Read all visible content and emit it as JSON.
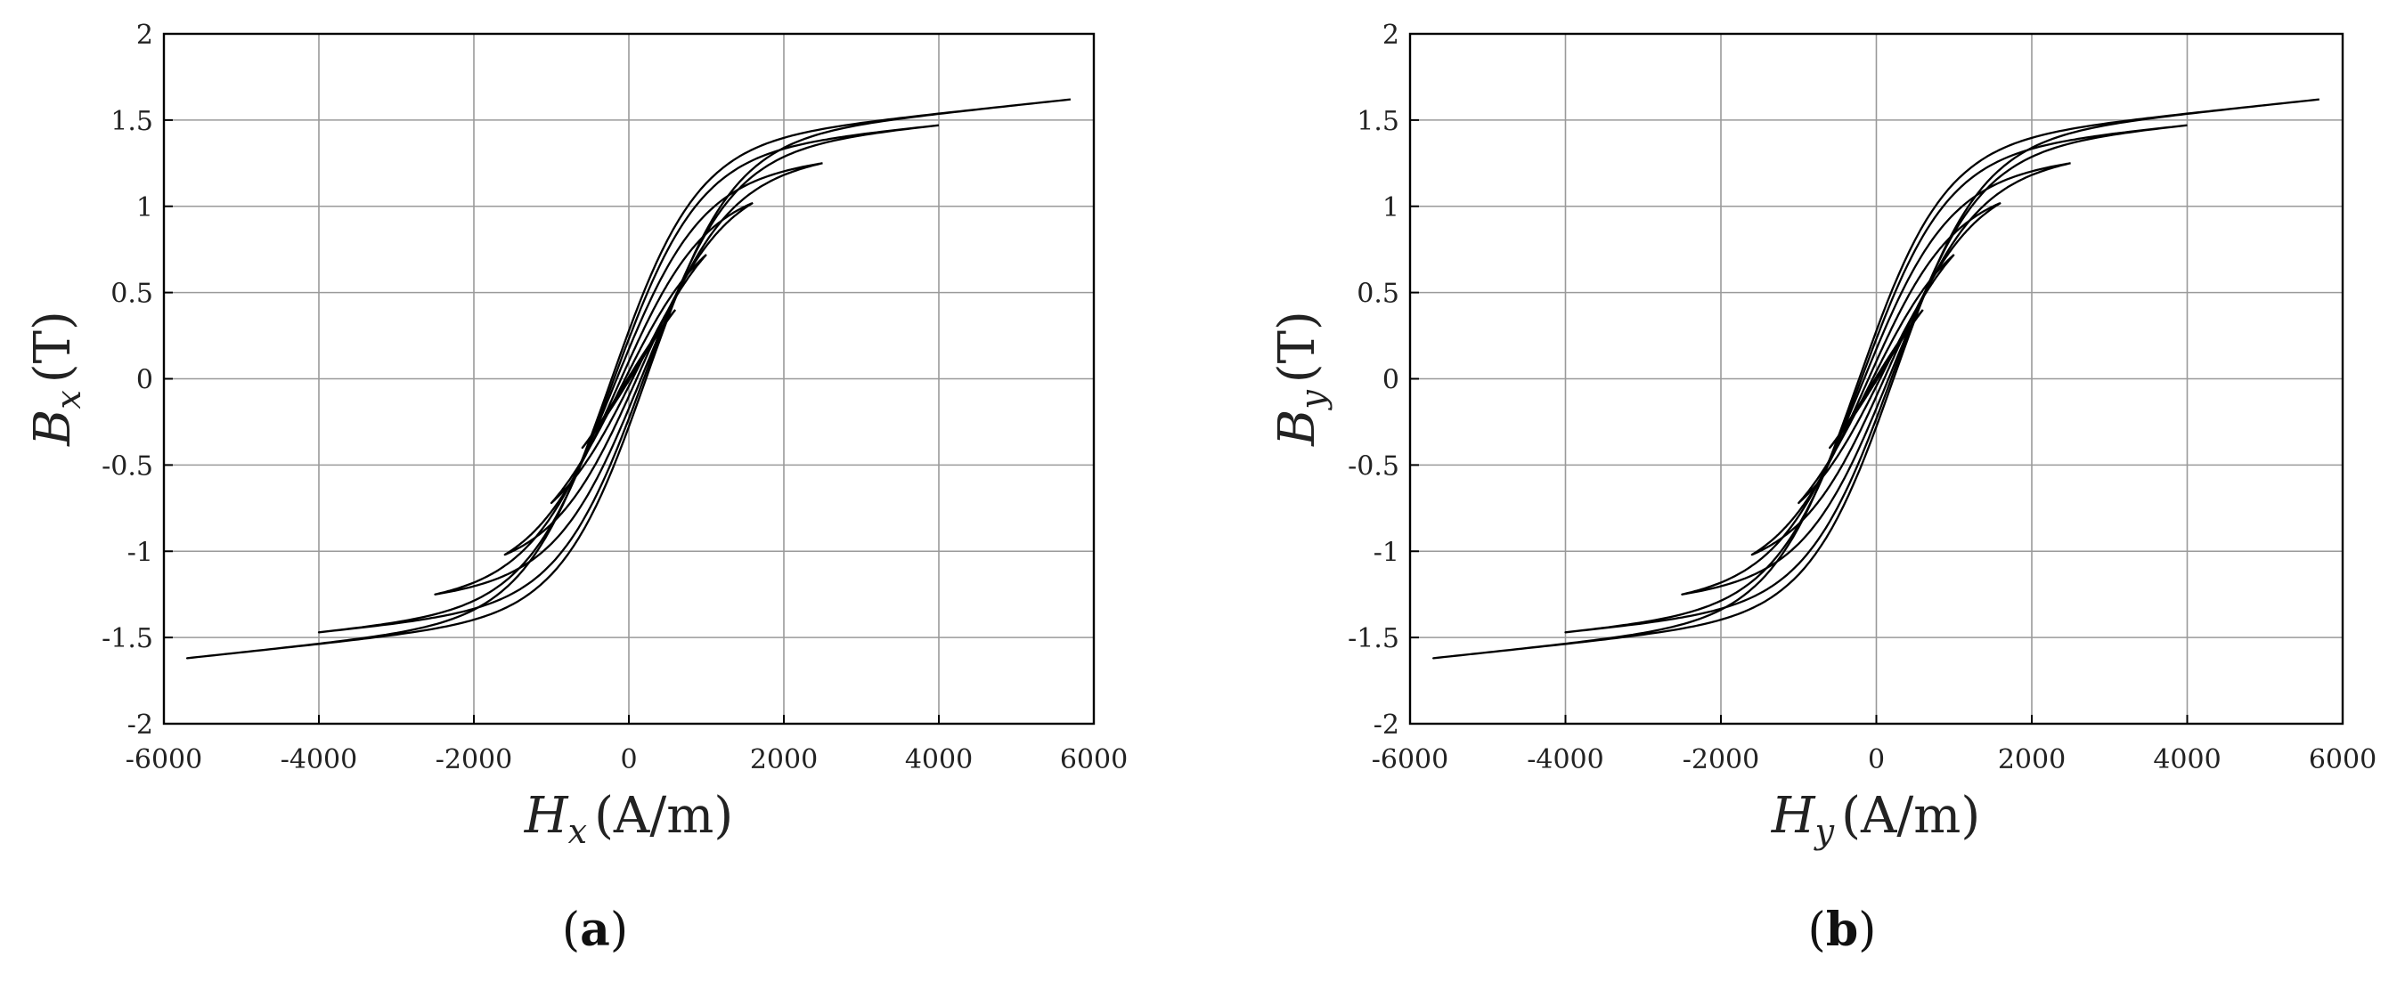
{
  "chart_data": [
    {
      "panel_label": "(a)",
      "panel_letter": "a",
      "type": "line",
      "xlabel": {
        "symbol": "H",
        "subscript": "x",
        "unit": "(A/m)"
      },
      "ylabel": {
        "symbol": "B",
        "subscript": "x",
        "unit": "(T)"
      },
      "xlim": [
        -6000,
        6000
      ],
      "ylim": [
        -2,
        2
      ],
      "xticks": [
        "-6000",
        "-4000",
        "-2000",
        "0",
        "2000",
        "4000",
        "6000"
      ],
      "yticks": [
        "2",
        "1.5",
        "1",
        "0.5",
        "0",
        "-0.5",
        "-1",
        "-1.5",
        "-2"
      ],
      "grid": true,
      "series": [
        {
          "peak_H": 5700,
          "peak_B": 1.62,
          "coercivity_H": 230
        },
        {
          "peak_H": 4000,
          "peak_B": 1.47,
          "coercivity_H": 200
        },
        {
          "peak_H": 2500,
          "peak_B": 1.25,
          "coercivity_H": 170
        },
        {
          "peak_H": 1600,
          "peak_B": 1.02,
          "coercivity_H": 130
        },
        {
          "peak_H": 1000,
          "peak_B": 0.72,
          "coercivity_H": 95
        },
        {
          "peak_H": 600,
          "peak_B": 0.4,
          "coercivity_H": 60
        }
      ]
    },
    {
      "panel_label": "(b)",
      "panel_letter": "b",
      "type": "line",
      "xlabel": {
        "symbol": "H",
        "subscript": "y",
        "unit": "(A/m)"
      },
      "ylabel": {
        "symbol": "B",
        "subscript": "y",
        "unit": "(T)"
      },
      "xlim": [
        -6000,
        6000
      ],
      "ylim": [
        -2,
        2
      ],
      "xticks": [
        "-6000",
        "-4000",
        "-2000",
        "0",
        "2000",
        "4000",
        "6000"
      ],
      "yticks": [
        "2",
        "1.5",
        "1",
        "0.5",
        "0",
        "-0.5",
        "-1",
        "-1.5",
        "-2"
      ],
      "grid": true,
      "series": [
        {
          "peak_H": 5700,
          "peak_B": 1.62,
          "coercivity_H": 230
        },
        {
          "peak_H": 4000,
          "peak_B": 1.47,
          "coercivity_H": 200
        },
        {
          "peak_H": 2500,
          "peak_B": 1.25,
          "coercivity_H": 170
        },
        {
          "peak_H": 1600,
          "peak_B": 1.02,
          "coercivity_H": 130
        },
        {
          "peak_H": 1000,
          "peak_B": 0.72,
          "coercivity_H": 95
        },
        {
          "peak_H": 600,
          "peak_B": 0.4,
          "coercivity_H": 60
        }
      ]
    }
  ]
}
